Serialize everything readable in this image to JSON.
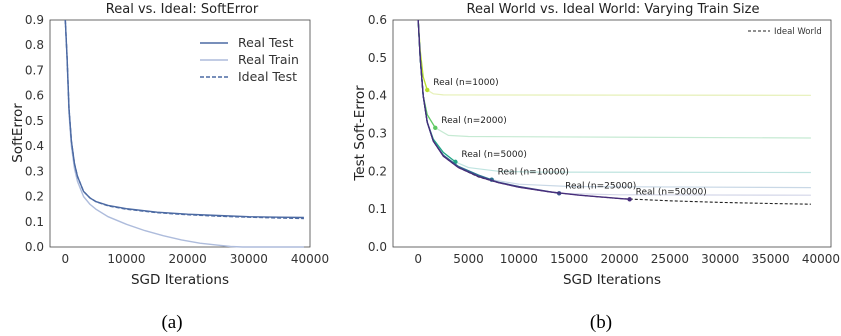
{
  "chart_data": [
    {
      "type": "line",
      "title": "Real vs. Ideal: SoftError",
      "xlabel": "SGD Iterations",
      "ylabel": "SoftError",
      "xlim": [
        -2500,
        40000
      ],
      "ylim": [
        0,
        0.9
      ],
      "xticks": [
        "0",
        "10000",
        "20000",
        "30000",
        "40000"
      ],
      "xtick_values": [
        0,
        10000,
        20000,
        30000,
        40000
      ],
      "yticks": [
        "0.0",
        "0.1",
        "0.2",
        "0.3",
        "0.4",
        "0.5",
        "0.6",
        "0.7",
        "0.8",
        "0.9"
      ],
      "ytick_values": [
        0,
        0.1,
        0.2,
        0.3,
        0.4,
        0.5,
        0.6,
        0.7,
        0.8,
        0.9
      ],
      "legend_position": "top-right",
      "grid": false,
      "series": [
        {
          "name": "Real Test",
          "color": "#4c6aa3",
          "style": "solid",
          "points": [
            [
              0,
              0.9
            ],
            [
              300,
              0.75
            ],
            [
              600,
              0.55
            ],
            [
              1000,
              0.42
            ],
            [
              1500,
              0.33
            ],
            [
              2000,
              0.28
            ],
            [
              3000,
              0.22
            ],
            [
              4000,
              0.195
            ],
            [
              5000,
              0.18
            ],
            [
              7000,
              0.165
            ],
            [
              10000,
              0.152
            ],
            [
              15000,
              0.138
            ],
            [
              20000,
              0.13
            ],
            [
              25000,
              0.125
            ],
            [
              30000,
              0.12
            ],
            [
              35000,
              0.118
            ],
            [
              39000,
              0.117
            ]
          ]
        },
        {
          "name": "Real Train",
          "color": "#aebcdc",
          "style": "solid",
          "points": [
            [
              0,
              0.9
            ],
            [
              300,
              0.74
            ],
            [
              600,
              0.53
            ],
            [
              1000,
              0.4
            ],
            [
              1500,
              0.31
            ],
            [
              2000,
              0.26
            ],
            [
              3000,
              0.2
            ],
            [
              4000,
              0.17
            ],
            [
              5000,
              0.15
            ],
            [
              7000,
              0.12
            ],
            [
              10000,
              0.09
            ],
            [
              13000,
              0.065
            ],
            [
              16000,
              0.045
            ],
            [
              19000,
              0.028
            ],
            [
              22000,
              0.015
            ],
            [
              25000,
              0.007
            ],
            [
              27000,
              0.002
            ],
            [
              29000,
              0
            ],
            [
              39000,
              0
            ]
          ]
        },
        {
          "name": "Ideal Test",
          "color": "#4c6aa3",
          "style": "dashed",
          "points": [
            [
              0,
              0.9
            ],
            [
              300,
              0.75
            ],
            [
              600,
              0.55
            ],
            [
              1000,
              0.42
            ],
            [
              1500,
              0.33
            ],
            [
              2000,
              0.28
            ],
            [
              3000,
              0.22
            ],
            [
              4000,
              0.195
            ],
            [
              5000,
              0.18
            ],
            [
              7000,
              0.163
            ],
            [
              10000,
              0.15
            ],
            [
              15000,
              0.136
            ],
            [
              20000,
              0.128
            ],
            [
              25000,
              0.122
            ],
            [
              30000,
              0.118
            ],
            [
              35000,
              0.115
            ],
            [
              39000,
              0.113
            ]
          ]
        }
      ]
    },
    {
      "type": "line",
      "title": "Real World vs. Ideal World: Varying Train Size",
      "xlabel": "SGD Iterations",
      "ylabel": "Test Soft-Error",
      "xlim": [
        -2500,
        41000
      ],
      "ylim": [
        0,
        0.6
      ],
      "xticks": [
        "0",
        "5000",
        "10000",
        "15000",
        "20000",
        "25000",
        "30000",
        "35000",
        "40000"
      ],
      "xtick_values": [
        0,
        5000,
        10000,
        15000,
        20000,
        25000,
        30000,
        35000,
        40000
      ],
      "yticks": [
        "0.0",
        "0.1",
        "0.2",
        "0.3",
        "0.4",
        "0.5",
        "0.6"
      ],
      "ytick_values": [
        0,
        0.1,
        0.2,
        0.3,
        0.4,
        0.5,
        0.6
      ],
      "legend_position": "top-right",
      "grid": false,
      "ideal": {
        "name": "Ideal World",
        "color": "#222222",
        "points": [
          [
            0,
            0.6
          ],
          [
            200,
            0.5
          ],
          [
            500,
            0.4
          ],
          [
            900,
            0.33
          ],
          [
            1500,
            0.28
          ],
          [
            2500,
            0.24
          ],
          [
            4000,
            0.21
          ],
          [
            6000,
            0.185
          ],
          [
            8000,
            0.17
          ],
          [
            10000,
            0.158
          ],
          [
            13000,
            0.146
          ],
          [
            16000,
            0.137
          ],
          [
            20000,
            0.128
          ],
          [
            25000,
            0.122
          ],
          [
            30000,
            0.118
          ],
          [
            35000,
            0.115
          ],
          [
            39000,
            0.113
          ]
        ]
      },
      "real_runs": [
        {
          "label": "Real (n=1000)",
          "color": "#b8de29",
          "flat_color": "#e6f0b8",
          "marker_x": 900,
          "marker_y": 0.415,
          "plateau": 0.402,
          "points": [
            [
              0,
              0.6
            ],
            [
              200,
              0.52
            ],
            [
              500,
              0.45
            ],
            [
              900,
              0.415
            ],
            [
              1500,
              0.405
            ],
            [
              2500,
              0.402
            ],
            [
              39000,
              0.401
            ]
          ]
        },
        {
          "label": "Real (n=2000)",
          "color": "#5ec962",
          "flat_color": "#c6ead3",
          "marker_x": 1700,
          "marker_y": 0.315,
          "plateau": 0.29,
          "points": [
            [
              0,
              0.6
            ],
            [
              200,
              0.5
            ],
            [
              500,
              0.4
            ],
            [
              900,
              0.35
            ],
            [
              1700,
              0.315
            ],
            [
              3000,
              0.295
            ],
            [
              5000,
              0.292
            ],
            [
              39000,
              0.288
            ]
          ]
        },
        {
          "label": "Real (n=5000)",
          "color": "#21a585",
          "flat_color": "#bfe4e0",
          "marker_x": 3700,
          "marker_y": 0.225,
          "plateau": 0.198,
          "points": [
            [
              0,
              0.6
            ],
            [
              200,
              0.5
            ],
            [
              500,
              0.4
            ],
            [
              900,
              0.33
            ],
            [
              1500,
              0.285
            ],
            [
              2500,
              0.25
            ],
            [
              3700,
              0.225
            ],
            [
              5000,
              0.21
            ],
            [
              8000,
              0.2
            ],
            [
              12000,
              0.198
            ],
            [
              39000,
              0.197
            ]
          ]
        },
        {
          "label": "Real (n=10000)",
          "color": "#2c728e",
          "flat_color": "#c9d8e6",
          "marker_x": 7300,
          "marker_y": 0.178,
          "plateau": 0.158,
          "points": [
            [
              0,
              0.6
            ],
            [
              200,
              0.5
            ],
            [
              500,
              0.4
            ],
            [
              900,
              0.33
            ],
            [
              1500,
              0.28
            ],
            [
              2500,
              0.243
            ],
            [
              4000,
              0.213
            ],
            [
              6000,
              0.19
            ],
            [
              7300,
              0.178
            ],
            [
              10000,
              0.166
            ],
            [
              15000,
              0.16
            ],
            [
              39000,
              0.157
            ]
          ]
        },
        {
          "label": "Real (n=25000)",
          "color": "#3b528b",
          "flat_color": "#d3d6e8",
          "marker_x": 14000,
          "marker_y": 0.142,
          "plateau": 0.137,
          "points": [
            [
              0,
              0.6
            ],
            [
              200,
              0.5
            ],
            [
              500,
              0.4
            ],
            [
              900,
              0.33
            ],
            [
              1500,
              0.28
            ],
            [
              2500,
              0.241
            ],
            [
              4000,
              0.211
            ],
            [
              6000,
              0.187
            ],
            [
              8000,
              0.171
            ],
            [
              10000,
              0.16
            ],
            [
              14000,
              0.142
            ],
            [
              20000,
              0.138
            ],
            [
              39000,
              0.137
            ]
          ]
        },
        {
          "label": "Real (n=50000)",
          "color": "#472d7b",
          "flat_color": "#d3d6e8",
          "marker_x": 21000,
          "marker_y": 0.126,
          "plateau": 0.126,
          "points": [
            [
              0,
              0.6
            ],
            [
              200,
              0.5
            ],
            [
              500,
              0.4
            ],
            [
              900,
              0.33
            ],
            [
              1500,
              0.28
            ],
            [
              2500,
              0.24
            ],
            [
              4000,
              0.21
            ],
            [
              6000,
              0.186
            ],
            [
              8000,
              0.17
            ],
            [
              10000,
              0.158
            ],
            [
              13000,
              0.146
            ],
            [
              16000,
              0.137
            ],
            [
              21000,
              0.126
            ]
          ]
        }
      ]
    }
  ],
  "captions": [
    "(a)",
    "(b)"
  ]
}
